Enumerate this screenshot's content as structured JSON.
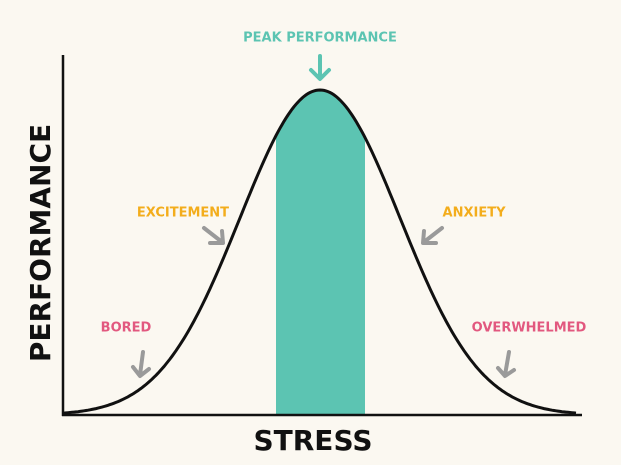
{
  "peak_label": "PEAK PERFORMANCE",
  "zones": {
    "excitement": "EXCITEMENT",
    "anxiety": "ANXIETY",
    "bored": "BORED",
    "overwhelmed": "OVERWHELMED"
  },
  "axes": {
    "x_label": "STRESS",
    "y_label": "PERFORMANCE"
  }
}
